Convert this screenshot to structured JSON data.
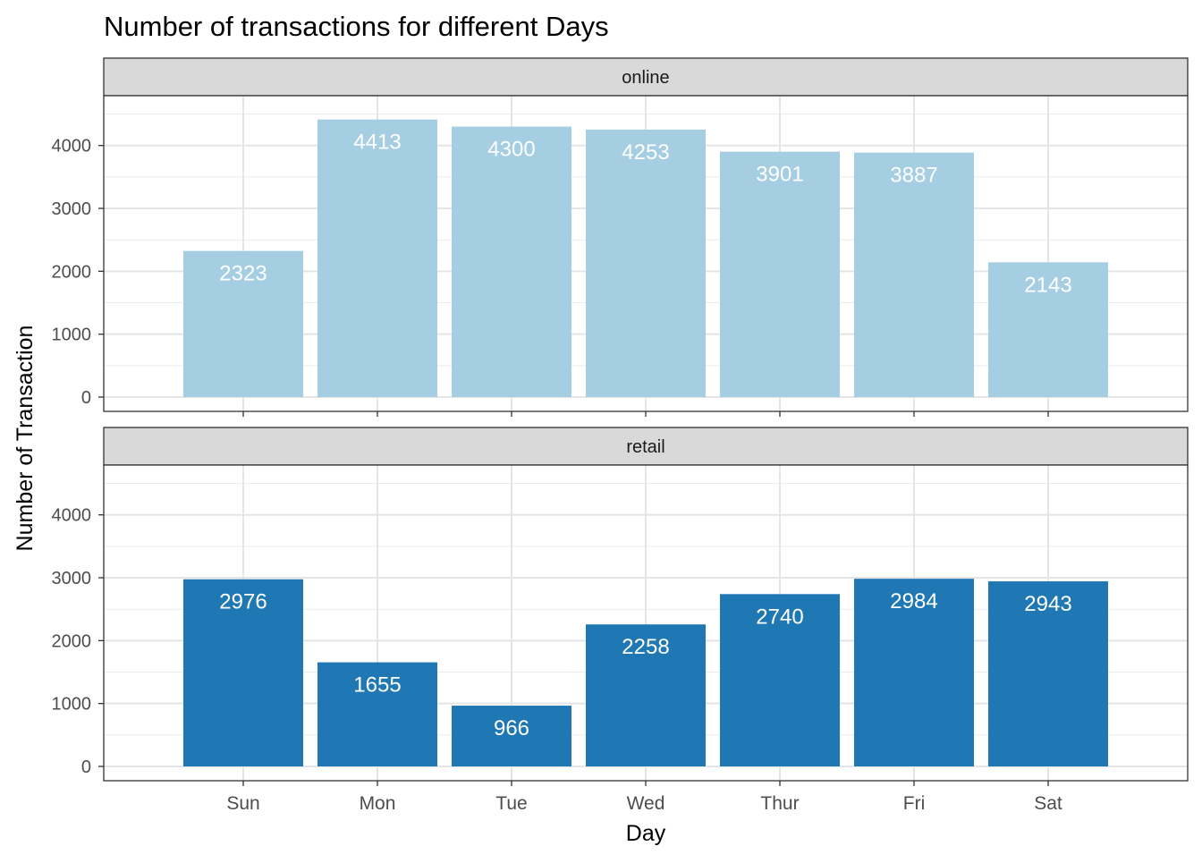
{
  "chart_data": {
    "type": "bar",
    "title": "Number of transactions for different Days",
    "xlabel": "Day",
    "ylabel": "Number of Transaction",
    "categories": [
      "Sun",
      "Mon",
      "Tue",
      "Wed",
      "Thur",
      "Fri",
      "Sat"
    ],
    "ylim": [
      0,
      4650
    ],
    "yticks": [
      0,
      1000,
      2000,
      3000,
      4000
    ],
    "grid": true,
    "facets": [
      {
        "name": "online",
        "color": "#a6cee3",
        "values": [
          2323,
          4413,
          4300,
          4253,
          3901,
          3887,
          2143
        ]
      },
      {
        "name": "retail",
        "color": "#1f78b4",
        "values": [
          2976,
          1655,
          966,
          2258,
          2740,
          2984,
          2943
        ]
      }
    ]
  }
}
